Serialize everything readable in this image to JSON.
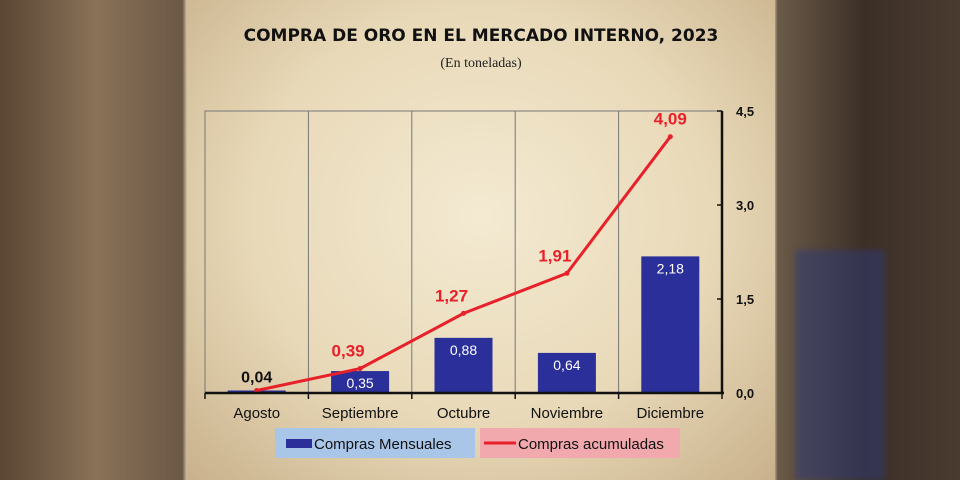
{
  "chart_data": {
    "type": "bar+line",
    "title": "COMPRA DE ORO EN EL MERCADO INTERNO, 2023",
    "subtitle": "(En toneladas)",
    "categories": [
      "Agosto",
      "Septiembre",
      "Octubre",
      "Noviembre",
      "Diciembre"
    ],
    "series": [
      {
        "name": "Compras Mensuales",
        "type": "bar",
        "color": "#2b2f9a",
        "values": [
          0.04,
          0.35,
          0.88,
          0.64,
          2.18
        ],
        "labels": [
          "0,04",
          "0,35",
          "0,88",
          "0,64",
          "2,18"
        ]
      },
      {
        "name": "Compras acumuladas",
        "type": "line",
        "color": "#e8202a",
        "values": [
          0.04,
          0.39,
          1.27,
          1.91,
          4.09
        ],
        "labels": [
          "",
          "0,39",
          "1,27",
          "1,91",
          "4,09"
        ]
      }
    ],
    "y_axis": {
      "position": "right",
      "ylim": [
        0,
        4.5
      ],
      "ticks": [
        0,
        1.5,
        3.0,
        4.5
      ],
      "tick_labels": [
        "0,0",
        "1,5",
        "3,0",
        "4,5"
      ]
    },
    "grid": "vertical",
    "legend": {
      "placement": "bottom",
      "bar_bg": "#a9c6e8",
      "line_bg": "#f2a9ae"
    }
  }
}
